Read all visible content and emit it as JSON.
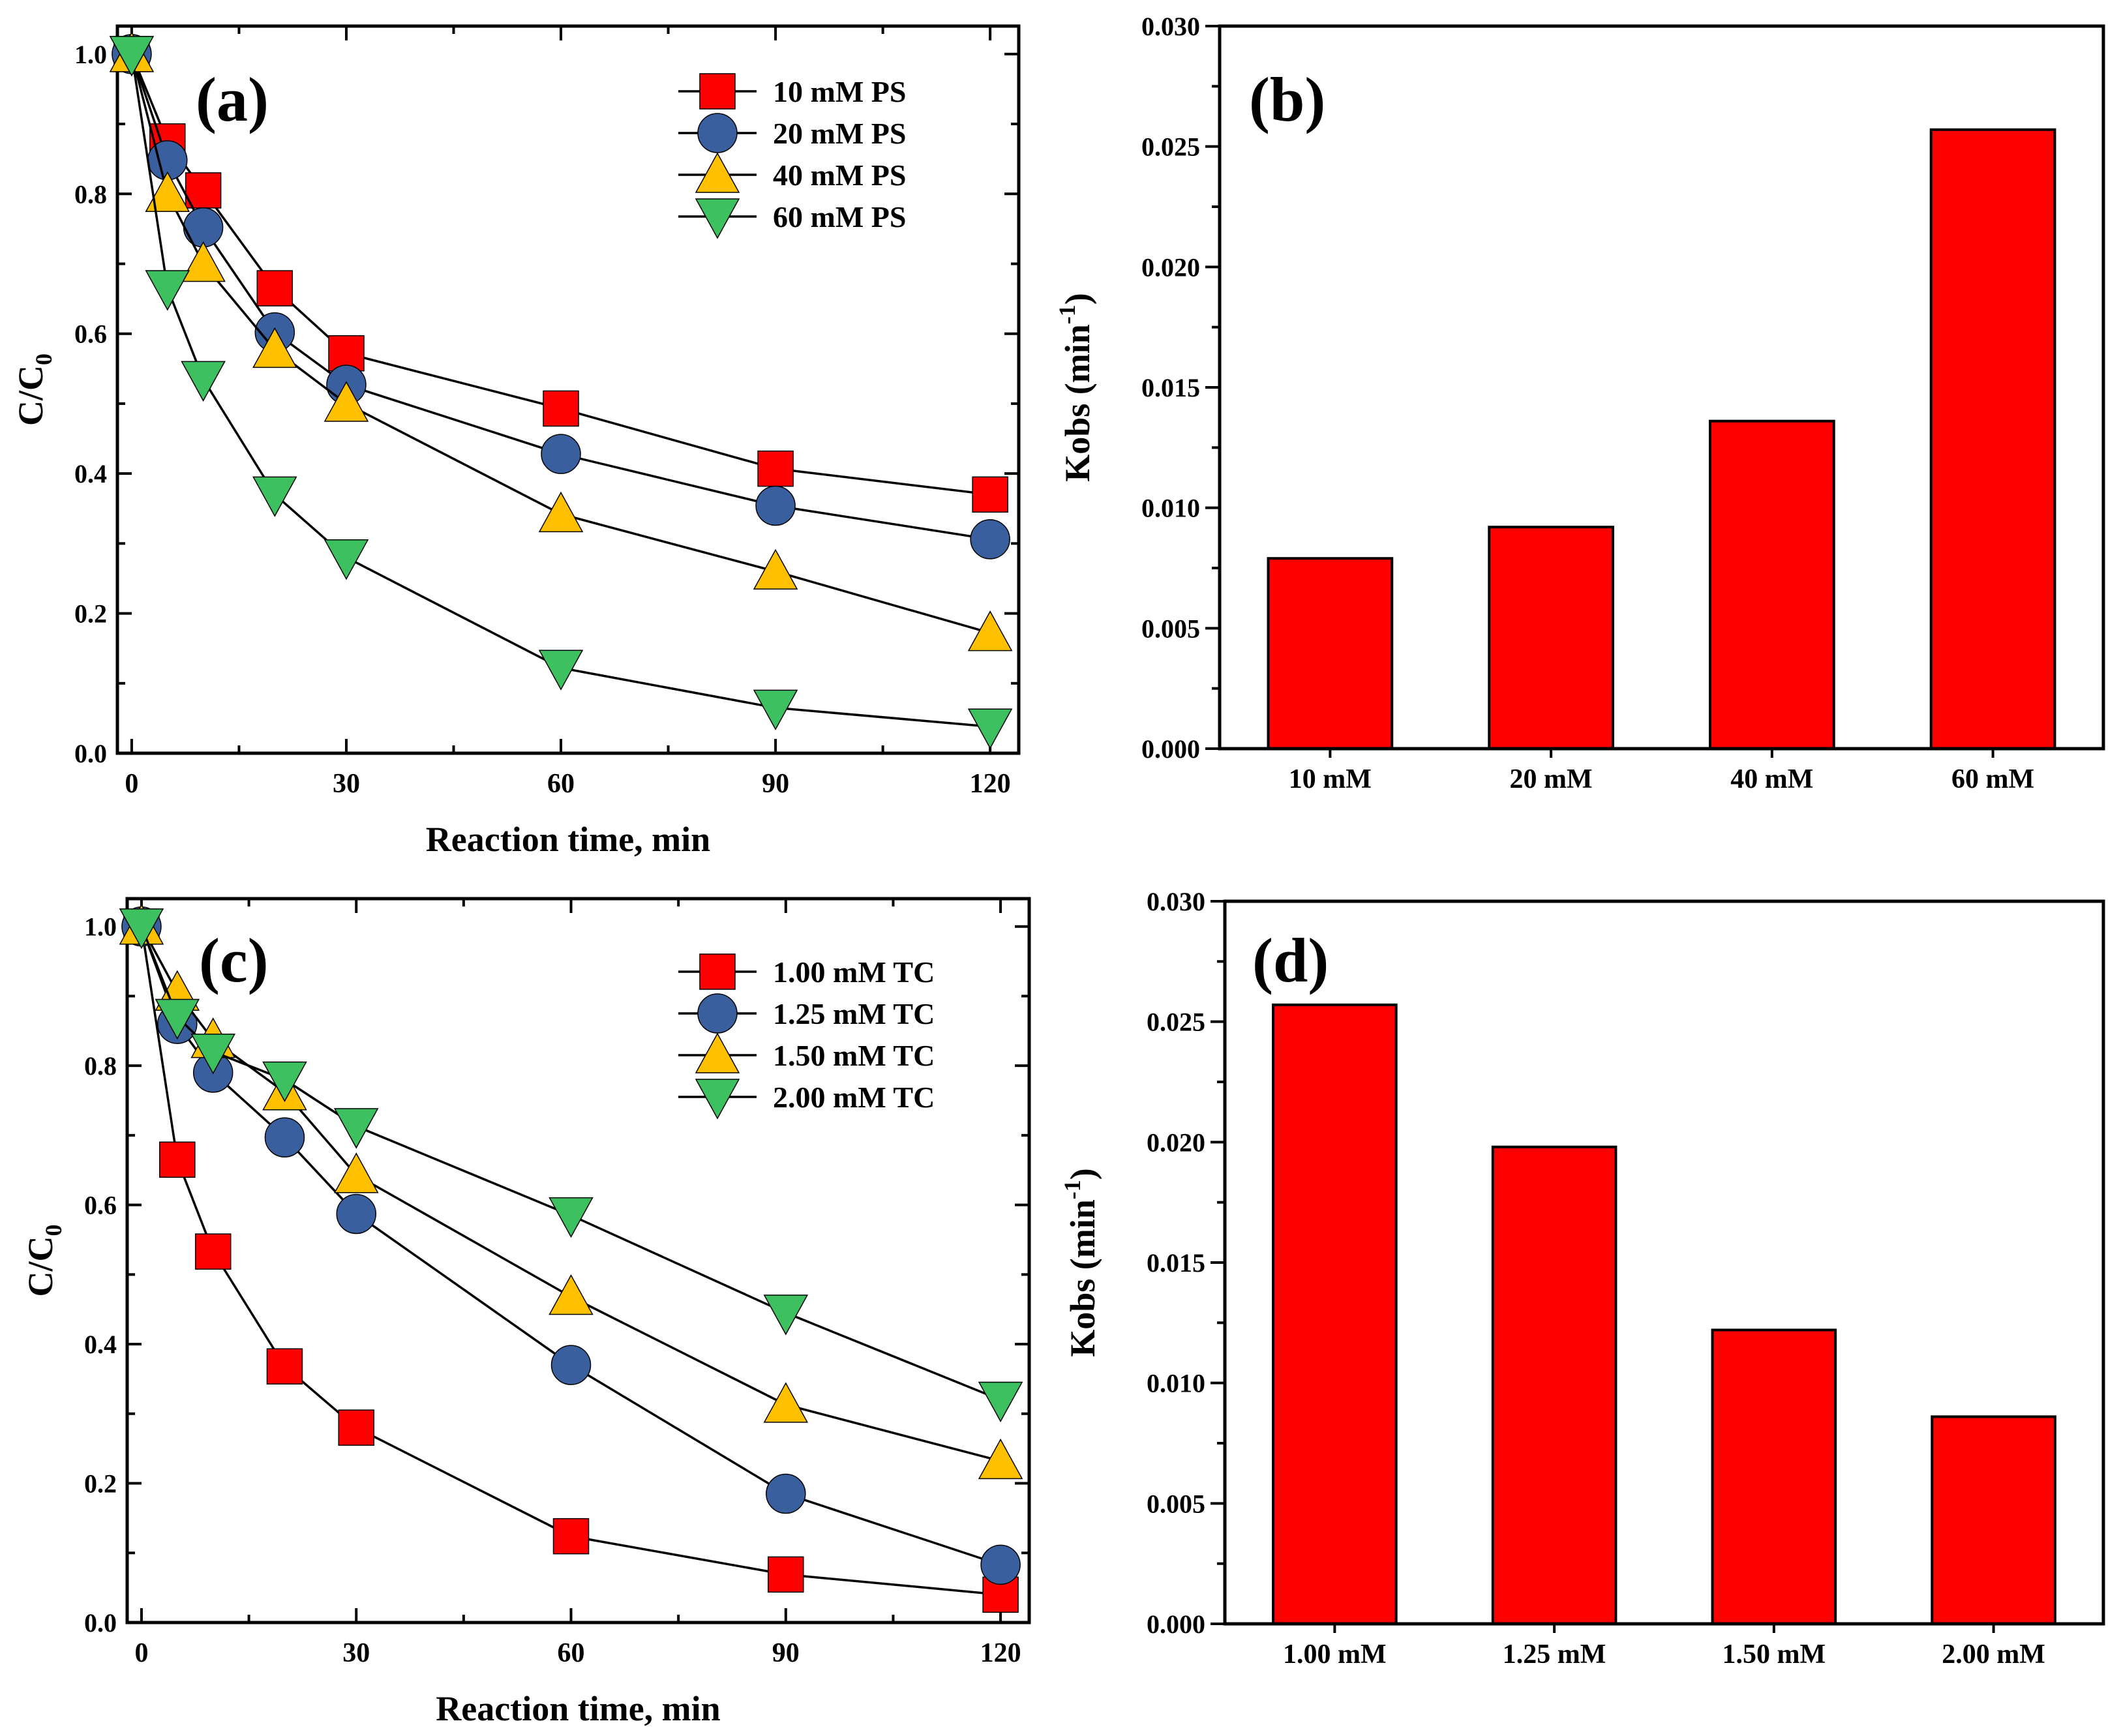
{
  "chart_data": [
    {
      "panel_label": "(a)",
      "type": "line",
      "xlabel": "Reaction time, min",
      "ylabel_main": "C/C",
      "ylabel_sub": "0",
      "xlim": [
        -2,
        124
      ],
      "ylim": [
        0,
        1.04
      ],
      "xticks": [
        "0",
        "30",
        "60",
        "90",
        "120"
      ],
      "yticks": [
        "0.0",
        "0.2",
        "0.4",
        "0.6",
        "0.8",
        "1.0"
      ],
      "legend_position": "top-right",
      "series": [
        {
          "name": "10 mM PS",
          "marker": "square",
          "color": "#ff0000",
          "x": [
            0,
            5,
            10,
            20,
            30,
            60,
            90,
            120
          ],
          "y": [
            1.0,
            0.875,
            0.805,
            0.665,
            0.572,
            0.493,
            0.407,
            0.37
          ]
        },
        {
          "name": "20 mM PS",
          "marker": "circle",
          "color": "#3a5f9f",
          "x": [
            0,
            5,
            10,
            20,
            30,
            60,
            90,
            120
          ],
          "y": [
            1.0,
            0.848,
            0.752,
            0.602,
            0.527,
            0.428,
            0.354,
            0.306
          ]
        },
        {
          "name": "40 mM PS",
          "marker": "triangle-up",
          "color": "#ffc000",
          "x": [
            0,
            5,
            10,
            20,
            30,
            60,
            90,
            120
          ],
          "y": [
            1.0,
            0.8,
            0.7,
            0.577,
            0.5,
            0.342,
            0.26,
            0.172
          ]
        },
        {
          "name": "60 mM PS",
          "marker": "triangle-down",
          "color": "#3cc060",
          "x": [
            0,
            5,
            10,
            20,
            30,
            60,
            90,
            120
          ],
          "y": [
            1.0,
            0.665,
            0.535,
            0.37,
            0.28,
            0.122,
            0.065,
            0.038
          ]
        }
      ]
    },
    {
      "panel_label": "(b)",
      "type": "bar",
      "xlabel": "",
      "ylabel_main": "Kobs (min",
      "ylabel_sup": "-1",
      "ylabel_end": ")",
      "categories": [
        "10 mM",
        "20 mM",
        "40 mM",
        "60 mM"
      ],
      "values": [
        0.0079,
        0.0092,
        0.0136,
        0.0257
      ],
      "bar_color": "#ff0000",
      "ylim": [
        0,
        0.03
      ],
      "yticks": [
        "0.000",
        "0.005",
        "0.010",
        "0.015",
        "0.020",
        "0.025",
        "0.030"
      ]
    },
    {
      "panel_label": "(c)",
      "type": "line",
      "xlabel": "Reaction time, min",
      "ylabel_main": "C/C",
      "ylabel_sub": "0",
      "xlim": [
        -2,
        124
      ],
      "ylim": [
        0,
        1.04
      ],
      "xticks": [
        "0",
        "30",
        "60",
        "90",
        "120"
      ],
      "yticks": [
        "0.0",
        "0.2",
        "0.4",
        "0.6",
        "0.8",
        "1.0"
      ],
      "legend_position": "top-right",
      "series": [
        {
          "name": "1.00 mM TC",
          "marker": "square",
          "color": "#ff0000",
          "x": [
            0,
            5,
            10,
            20,
            30,
            60,
            90,
            120
          ],
          "y": [
            1.0,
            0.665,
            0.533,
            0.368,
            0.28,
            0.124,
            0.069,
            0.04
          ]
        },
        {
          "name": "1.25 mM TC",
          "marker": "circle",
          "color": "#3a5f9f",
          "x": [
            0,
            5,
            10,
            20,
            30,
            60,
            90,
            120
          ],
          "y": [
            1.0,
            0.86,
            0.79,
            0.697,
            0.587,
            0.37,
            0.185,
            0.083
          ]
        },
        {
          "name": "1.50 mM TC",
          "marker": "triangle-up",
          "color": "#ffc000",
          "x": [
            0,
            5,
            10,
            20,
            30,
            60,
            90,
            120
          ],
          "y": [
            1.0,
            0.905,
            0.837,
            0.762,
            0.643,
            0.468,
            0.313,
            0.232
          ]
        },
        {
          "name": "2.00 mM TC",
          "marker": "triangle-down",
          "color": "#3cc060",
          "x": [
            0,
            5,
            10,
            20,
            30,
            60,
            90,
            120
          ],
          "y": [
            1.0,
            0.87,
            0.82,
            0.78,
            0.713,
            0.585,
            0.445,
            0.32
          ]
        }
      ]
    },
    {
      "panel_label": "(d)",
      "type": "bar",
      "xlabel": "",
      "ylabel_main": "Kobs (min",
      "ylabel_sup": "-1",
      "ylabel_end": ")",
      "categories": [
        "1.00 mM",
        "1.25 mM",
        "1.50 mM",
        "2.00 mM"
      ],
      "values": [
        0.0257,
        0.0198,
        0.0122,
        0.0086
      ],
      "bar_color": "#ff0000",
      "ylim": [
        0,
        0.03
      ],
      "yticks": [
        "0.000",
        "0.005",
        "0.010",
        "0.015",
        "0.020",
        "0.025",
        "0.030"
      ]
    }
  ]
}
